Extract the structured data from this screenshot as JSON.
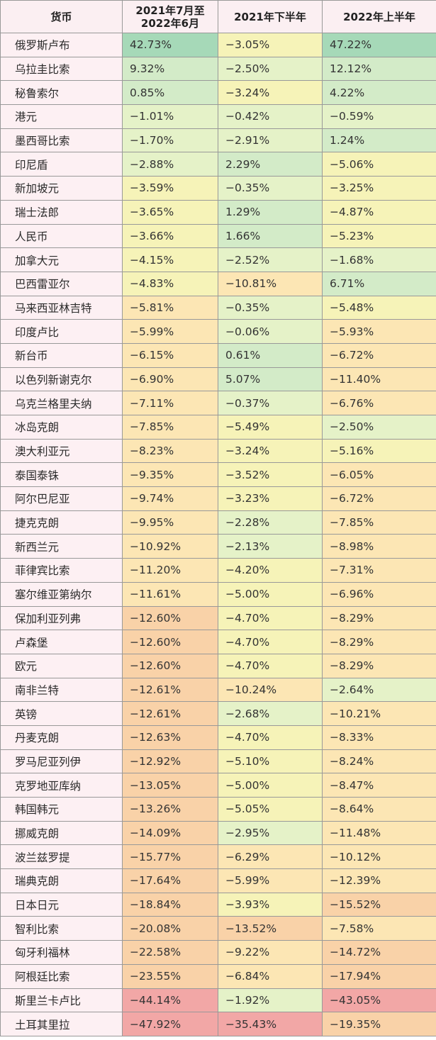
{
  "chart_data": {
    "type": "table",
    "columns": [
      "货币",
      "2021年7月至2022年6月",
      "2021年下半年",
      "2022年上半年"
    ],
    "rows": [
      {
        "currency": "俄罗斯卢布",
        "values": [
          42.73,
          -3.05,
          47.22
        ],
        "labels": [
          "42.73%",
          "−3.05%",
          "47.22%"
        ]
      },
      {
        "currency": "乌拉圭比索",
        "values": [
          9.32,
          -2.5,
          12.12
        ],
        "labels": [
          "9.32%",
          "−2.50%",
          "12.12%"
        ]
      },
      {
        "currency": "秘鲁索尔",
        "values": [
          0.85,
          -3.24,
          4.22
        ],
        "labels": [
          "0.85%",
          "−3.24%",
          "4.22%"
        ]
      },
      {
        "currency": "港元",
        "values": [
          -1.01,
          -0.42,
          -0.59
        ],
        "labels": [
          "−1.01%",
          "−0.42%",
          "−0.59%"
        ]
      },
      {
        "currency": "墨西哥比索",
        "values": [
          -1.7,
          -2.91,
          1.24
        ],
        "labels": [
          "−1.70%",
          "−2.91%",
          "1.24%"
        ]
      },
      {
        "currency": "印尼盾",
        "values": [
          -2.88,
          2.29,
          -5.06
        ],
        "labels": [
          "−2.88%",
          "2.29%",
          "−5.06%"
        ]
      },
      {
        "currency": "新加坡元",
        "values": [
          -3.59,
          -0.35,
          -3.25
        ],
        "labels": [
          "−3.59%",
          "−0.35%",
          "−3.25%"
        ]
      },
      {
        "currency": "瑞士法郎",
        "values": [
          -3.65,
          1.29,
          -4.87
        ],
        "labels": [
          "−3.65%",
          "1.29%",
          "−4.87%"
        ]
      },
      {
        "currency": "人民币",
        "values": [
          -3.66,
          1.66,
          -5.23
        ],
        "labels": [
          "−3.66%",
          "1.66%",
          "−5.23%"
        ]
      },
      {
        "currency": "加拿大元",
        "values": [
          -4.15,
          -2.52,
          -1.68
        ],
        "labels": [
          "−4.15%",
          "−2.52%",
          "−1.68%"
        ]
      },
      {
        "currency": "巴西雷亚尔",
        "values": [
          -4.83,
          -10.81,
          6.71
        ],
        "labels": [
          "−4.83%",
          "−10.81%",
          "6.71%"
        ]
      },
      {
        "currency": "马来西亚林吉特",
        "values": [
          -5.81,
          -0.35,
          -5.48
        ],
        "labels": [
          "−5.81%",
          "−0.35%",
          "−5.48%"
        ]
      },
      {
        "currency": "印度卢比",
        "values": [
          -5.99,
          -0.06,
          -5.93
        ],
        "labels": [
          "−5.99%",
          "−0.06%",
          "−5.93%"
        ]
      },
      {
        "currency": "新台币",
        "values": [
          -6.15,
          0.61,
          -6.72
        ],
        "labels": [
          "−6.15%",
          "0.61%",
          "−6.72%"
        ]
      },
      {
        "currency": "以色列新谢克尔",
        "values": [
          -6.9,
          5.07,
          -11.4
        ],
        "labels": [
          "−6.90%",
          "5.07%",
          "−11.40%"
        ]
      },
      {
        "currency": "乌克兰格里夫纳",
        "values": [
          -7.11,
          -0.37,
          -6.76
        ],
        "labels": [
          "−7.11%",
          "−0.37%",
          "−6.76%"
        ]
      },
      {
        "currency": "冰岛克朗",
        "values": [
          -7.85,
          -5.49,
          -2.5
        ],
        "labels": [
          "−7.85%",
          "−5.49%",
          "−2.50%"
        ]
      },
      {
        "currency": "澳大利亚元",
        "values": [
          -8.23,
          -3.24,
          -5.16
        ],
        "labels": [
          "−8.23%",
          "−3.24%",
          "−5.16%"
        ]
      },
      {
        "currency": "泰国泰铢",
        "values": [
          -9.35,
          -3.52,
          -6.05
        ],
        "labels": [
          "−9.35%",
          "−3.52%",
          "−6.05%"
        ]
      },
      {
        "currency": "阿尔巴尼亚",
        "values": [
          -9.74,
          -3.23,
          -6.72
        ],
        "labels": [
          "−9.74%",
          "−3.23%",
          "−6.72%"
        ]
      },
      {
        "currency": "捷克克朗",
        "values": [
          -9.95,
          -2.28,
          -7.85
        ],
        "labels": [
          "−9.95%",
          "−2.28%",
          "−7.85%"
        ]
      },
      {
        "currency": "新西兰元",
        "values": [
          -10.92,
          -2.13,
          -8.98
        ],
        "labels": [
          "−10.92%",
          "−2.13%",
          "−8.98%"
        ]
      },
      {
        "currency": "菲律宾比索",
        "values": [
          -11.2,
          -4.2,
          -7.31
        ],
        "labels": [
          "−11.20%",
          "−4.20%",
          "−7.31%"
        ]
      },
      {
        "currency": "塞尔维亚第纳尔",
        "values": [
          -11.61,
          -5.0,
          -6.96
        ],
        "labels": [
          "−11.61%",
          "−5.00%",
          "−6.96%"
        ]
      },
      {
        "currency": "保加利亚列弗",
        "values": [
          -12.6,
          -4.7,
          -8.29
        ],
        "labels": [
          "−12.60%",
          "−4.70%",
          "−8.29%"
        ]
      },
      {
        "currency": "卢森堡",
        "values": [
          -12.6,
          -4.7,
          -8.29
        ],
        "labels": [
          "−12.60%",
          "−4.70%",
          "−8.29%"
        ]
      },
      {
        "currency": "欧元",
        "values": [
          -12.6,
          -4.7,
          -8.29
        ],
        "labels": [
          "−12.60%",
          "−4.70%",
          "−8.29%"
        ]
      },
      {
        "currency": "南非兰特",
        "values": [
          -12.61,
          -10.24,
          -2.64
        ],
        "labels": [
          "−12.61%",
          "−10.24%",
          "−2.64%"
        ]
      },
      {
        "currency": "英镑",
        "values": [
          -12.61,
          -2.68,
          -10.21
        ],
        "labels": [
          "−12.61%",
          "−2.68%",
          "−10.21%"
        ]
      },
      {
        "currency": "丹麦克朗",
        "values": [
          -12.63,
          -4.7,
          -8.33
        ],
        "labels": [
          "−12.63%",
          "−4.70%",
          "−8.33%"
        ]
      },
      {
        "currency": "罗马尼亚列伊",
        "values": [
          -12.92,
          -5.1,
          -8.24
        ],
        "labels": [
          "−12.92%",
          "−5.10%",
          "−8.24%"
        ]
      },
      {
        "currency": "克罗地亚库纳",
        "values": [
          -13.05,
          -5.0,
          -8.47
        ],
        "labels": [
          "−13.05%",
          "−5.00%",
          "−8.47%"
        ]
      },
      {
        "currency": "韩国韩元",
        "values": [
          -13.26,
          -5.05,
          -8.64
        ],
        "labels": [
          "−13.26%",
          "−5.05%",
          "−8.64%"
        ]
      },
      {
        "currency": "挪威克朗",
        "values": [
          -14.09,
          -2.95,
          -11.48
        ],
        "labels": [
          "−14.09%",
          "−2.95%",
          "−11.48%"
        ]
      },
      {
        "currency": "波兰兹罗提",
        "values": [
          -15.77,
          -6.29,
          -10.12
        ],
        "labels": [
          "−15.77%",
          "−6.29%",
          "−10.12%"
        ]
      },
      {
        "currency": "瑞典克朗",
        "values": [
          -17.64,
          -5.99,
          -12.39
        ],
        "labels": [
          "−17.64%",
          "−5.99%",
          "−12.39%"
        ]
      },
      {
        "currency": "日本日元",
        "values": [
          -18.84,
          -3.93,
          -15.52
        ],
        "labels": [
          "−18.84%",
          "−3.93%",
          "−15.52%"
        ]
      },
      {
        "currency": "智利比索",
        "values": [
          -20.08,
          -13.52,
          -7.58
        ],
        "labels": [
          "−20.08%",
          "−13.52%",
          "−7.58%"
        ]
      },
      {
        "currency": "匈牙利福林",
        "values": [
          -22.58,
          -9.22,
          -14.72
        ],
        "labels": [
          "−22.58%",
          "−9.22%",
          "−14.72%"
        ]
      },
      {
        "currency": "阿根廷比索",
        "values": [
          -23.55,
          -6.84,
          -17.94
        ],
        "labels": [
          "−23.55%",
          "−6.84%",
          "−17.94%"
        ]
      },
      {
        "currency": "斯里兰卡卢比",
        "values": [
          -44.14,
          -1.92,
          -43.05
        ],
        "labels": [
          "−44.14%",
          "−1.92%",
          "−43.05%"
        ]
      },
      {
        "currency": "土耳其里拉",
        "values": [
          -47.92,
          -35.43,
          -19.35
        ],
        "labels": [
          "−47.92%",
          "−35.43%",
          "−19.35%"
        ]
      }
    ],
    "colors": {
      "strong_positive": "#a6d9b8",
      "positive": "#d3ebc8",
      "neutral": "#e5f2c8",
      "slight_negative": "#f6f3b8",
      "moderate_negative": "#fce6b4",
      "negative": "#f9d2a8",
      "strong_negative": "#f2a7a6",
      "header_bg": "#fbeff2",
      "name_bg": "#fdf0f3"
    }
  }
}
